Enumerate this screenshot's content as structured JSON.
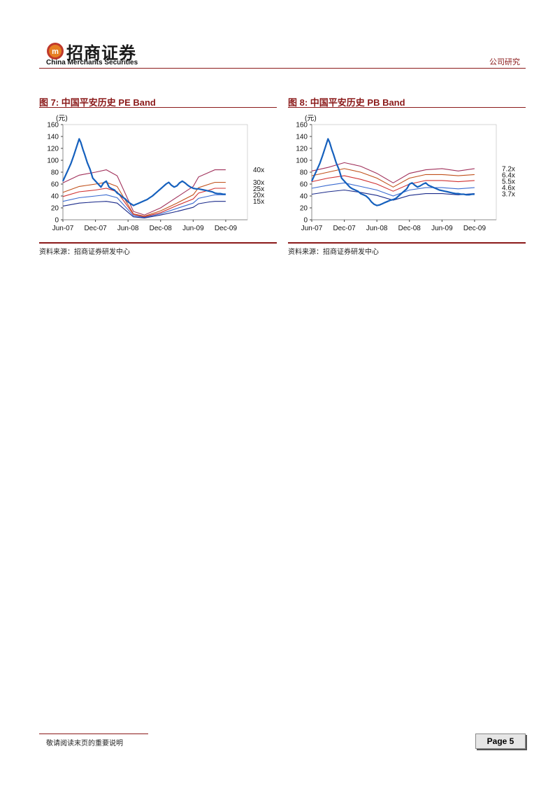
{
  "header": {
    "brand_cn": "招商证券",
    "brand_en": "China Merchants Securities",
    "report_type": "公司研究"
  },
  "figures": [
    {
      "id": "fig7",
      "title": "图 7:  中国平安历史 PE Band",
      "source": "资料来源：招商证券研发中心"
    },
    {
      "id": "fig8",
      "title": "图 8:  中国平安历史 PB Band",
      "source": "资料来源：招商证券研发中心"
    }
  ],
  "footer": {
    "note": "敬请阅读末页的重要说明",
    "page_label": "Page 5"
  },
  "colors": {
    "brand": "#8b1a1a",
    "price_line": "#1560bd"
  },
  "chart_data": [
    {
      "type": "line",
      "title": "图 7:  中国平安历史 PE Band",
      "unit_label": "(元)",
      "ylim": [
        0,
        160
      ],
      "yticks": [
        0,
        20,
        40,
        60,
        80,
        100,
        120,
        140,
        160
      ],
      "xticks": [
        "Jun-07",
        "Dec-07",
        "Jun-08",
        "Dec-08",
        "Jun-09",
        "Dec-09"
      ],
      "xlim": [
        0,
        34
      ],
      "grid": false,
      "legend": "right-end labels",
      "price": {
        "color": "#1560bd",
        "points": [
          [
            0,
            65
          ],
          [
            0.5,
            75
          ],
          [
            1,
            85
          ],
          [
            1.5,
            95
          ],
          [
            2,
            108
          ],
          [
            2.5,
            122
          ],
          [
            3,
            136
          ],
          [
            3.3,
            130
          ],
          [
            3.7,
            118
          ],
          [
            4,
            110
          ],
          [
            4.5,
            96
          ],
          [
            5,
            85
          ],
          [
            5.5,
            70
          ],
          [
            6,
            65
          ],
          [
            6.5,
            60
          ],
          [
            7,
            55
          ],
          [
            7.5,
            62
          ],
          [
            8,
            65
          ],
          [
            8.5,
            55
          ],
          [
            9,
            52
          ],
          [
            9.5,
            50
          ],
          [
            10,
            45
          ],
          [
            10.5,
            42
          ],
          [
            11,
            38
          ],
          [
            11.5,
            35
          ],
          [
            12,
            30
          ],
          [
            12.5,
            27
          ],
          [
            13,
            24
          ],
          [
            13.5,
            26
          ],
          [
            14,
            28
          ],
          [
            14.5,
            30
          ],
          [
            15,
            32
          ],
          [
            15.5,
            34
          ],
          [
            16,
            37
          ],
          [
            16.5,
            40
          ],
          [
            17,
            44
          ],
          [
            17.5,
            48
          ],
          [
            18,
            52
          ],
          [
            18.5,
            56
          ],
          [
            19,
            60
          ],
          [
            19.5,
            63
          ],
          [
            20,
            58
          ],
          [
            20.5,
            55
          ],
          [
            21,
            57
          ],
          [
            21.5,
            62
          ],
          [
            22,
            65
          ],
          [
            22.5,
            62
          ],
          [
            23,
            58
          ],
          [
            23.5,
            55
          ],
          [
            24,
            53
          ],
          [
            24.5,
            52
          ],
          [
            25,
            52
          ],
          [
            25.5,
            51
          ],
          [
            26,
            50
          ],
          [
            26.5,
            49
          ],
          [
            27,
            48
          ],
          [
            27.5,
            47
          ],
          [
            28,
            45
          ],
          [
            28.5,
            44
          ],
          [
            29,
            44
          ],
          [
            29.5,
            43
          ],
          [
            30,
            43
          ]
        ]
      },
      "series": [
        {
          "name": "40x",
          "color": "#a0305a",
          "values": [
            [
              0,
              62
            ],
            [
              3,
              75
            ],
            [
              6,
              80
            ],
            [
              8,
              84
            ],
            [
              10,
              74
            ],
            [
              13,
              14
            ],
            [
              15,
              8
            ],
            [
              18,
              20
            ],
            [
              21,
              38
            ],
            [
              24,
              56
            ],
            [
              25,
              72
            ],
            [
              27,
              80
            ],
            [
              28,
              84
            ],
            [
              30,
              84
            ]
          ]
        },
        {
          "name": "30x",
          "color": "#c0501a",
          "values": [
            [
              0,
              46
            ],
            [
              3,
              56
            ],
            [
              6,
              60
            ],
            [
              8,
              63
            ],
            [
              10,
              56
            ],
            [
              13,
              10
            ],
            [
              15,
              6
            ],
            [
              18,
              15
            ],
            [
              21,
              28
            ],
            [
              24,
              42
            ],
            [
              25,
              54
            ],
            [
              27,
              60
            ],
            [
              28,
              63
            ],
            [
              30,
              63
            ]
          ]
        },
        {
          "name": "25x",
          "color": "#d03030",
          "values": [
            [
              0,
              39
            ],
            [
              3,
              47
            ],
            [
              6,
              50
            ],
            [
              8,
              53
            ],
            [
              10,
              47
            ],
            [
              13,
              9
            ],
            [
              15,
              5
            ],
            [
              18,
              12
            ],
            [
              21,
              24
            ],
            [
              24,
              35
            ],
            [
              25,
              45
            ],
            [
              27,
              50
            ],
            [
              28,
              53
            ],
            [
              30,
              53
            ]
          ]
        },
        {
          "name": "20x",
          "color": "#3a6ad0",
          "values": [
            [
              0,
              31
            ],
            [
              3,
              37
            ],
            [
              6,
              40
            ],
            [
              8,
              42
            ],
            [
              10,
              37
            ],
            [
              13,
              7
            ],
            [
              15,
              4
            ],
            [
              18,
              10
            ],
            [
              21,
              19
            ],
            [
              24,
              28
            ],
            [
              25,
              36
            ],
            [
              27,
              40
            ],
            [
              28,
              42
            ],
            [
              30,
              42
            ]
          ]
        },
        {
          "name": "15x",
          "color": "#1a2a8a",
          "values": [
            [
              0,
              23
            ],
            [
              3,
              28
            ],
            [
              6,
              30
            ],
            [
              8,
              31
            ],
            [
              10,
              28
            ],
            [
              13,
              5
            ],
            [
              15,
              3
            ],
            [
              18,
              8
            ],
            [
              21,
              14
            ],
            [
              24,
              21
            ],
            [
              25,
              27
            ],
            [
              27,
              30
            ],
            [
              28,
              31
            ],
            [
              30,
              31
            ]
          ]
        }
      ]
    },
    {
      "type": "line",
      "title": "图 8:  中国平安历史 PB Band",
      "unit_label": "(元)",
      "ylim": [
        0,
        160
      ],
      "yticks": [
        0,
        20,
        40,
        60,
        80,
        100,
        120,
        140,
        160
      ],
      "xticks": [
        "Jun-07",
        "Dec-07",
        "Jun-08",
        "Dec-08",
        "Jun-09",
        "Dec-09"
      ],
      "xlim": [
        0,
        34
      ],
      "grid": false,
      "legend": "right-end labels",
      "price": {
        "color": "#1560bd",
        "points": [
          [
            0,
            65
          ],
          [
            0.5,
            75
          ],
          [
            1,
            85
          ],
          [
            1.5,
            95
          ],
          [
            2,
            108
          ],
          [
            2.5,
            122
          ],
          [
            3,
            136
          ],
          [
            3.3,
            130
          ],
          [
            3.7,
            118
          ],
          [
            4,
            110
          ],
          [
            4.5,
            96
          ],
          [
            5,
            85
          ],
          [
            5.5,
            70
          ],
          [
            6,
            65
          ],
          [
            6.5,
            60
          ],
          [
            7,
            55
          ],
          [
            7.5,
            52
          ],
          [
            8,
            50
          ],
          [
            8.5,
            48
          ],
          [
            9,
            44
          ],
          [
            9.5,
            42
          ],
          [
            10,
            40
          ],
          [
            10.5,
            36
          ],
          [
            11,
            30
          ],
          [
            11.5,
            26
          ],
          [
            12,
            24
          ],
          [
            12.5,
            25
          ],
          [
            13,
            27
          ],
          [
            13.5,
            29
          ],
          [
            14,
            31
          ],
          [
            14.5,
            33
          ],
          [
            15,
            34
          ],
          [
            15.5,
            36
          ],
          [
            16,
            40
          ],
          [
            16.5,
            44
          ],
          [
            17,
            48
          ],
          [
            17.5,
            52
          ],
          [
            18,
            60
          ],
          [
            18.5,
            62
          ],
          [
            19,
            58
          ],
          [
            19.5,
            55
          ],
          [
            20,
            57
          ],
          [
            20.5,
            60
          ],
          [
            21,
            62
          ],
          [
            21.5,
            58
          ],
          [
            22,
            56
          ],
          [
            22.5,
            54
          ],
          [
            23,
            52
          ],
          [
            23.5,
            50
          ],
          [
            24,
            49
          ],
          [
            24.5,
            48
          ],
          [
            25,
            47
          ],
          [
            25.5,
            46
          ],
          [
            26,
            45
          ],
          [
            26.5,
            44
          ],
          [
            27,
            44
          ],
          [
            27.5,
            43
          ],
          [
            28,
            43
          ],
          [
            28.5,
            42
          ],
          [
            29,
            42
          ],
          [
            29.5,
            43
          ],
          [
            30,
            43
          ]
        ]
      },
      "series": [
        {
          "name": "7.2x",
          "color": "#a0305a",
          "values": [
            [
              0,
              82
            ],
            [
              3,
              88
            ],
            [
              6,
              96
            ],
            [
              9,
              90
            ],
            [
              12,
              78
            ],
            [
              15,
              62
            ],
            [
              18,
              78
            ],
            [
              21,
              84
            ],
            [
              24,
              86
            ],
            [
              27,
              82
            ],
            [
              30,
              86
            ]
          ]
        },
        {
          "name": "6.4x",
          "color": "#c0501a",
          "values": [
            [
              0,
              74
            ],
            [
              3,
              80
            ],
            [
              6,
              86
            ],
            [
              9,
              80
            ],
            [
              12,
              70
            ],
            [
              15,
              55
            ],
            [
              18,
              70
            ],
            [
              21,
              76
            ],
            [
              24,
              76
            ],
            [
              27,
              74
            ],
            [
              30,
              76
            ]
          ]
        },
        {
          "name": "5.5x",
          "color": "#d03030",
          "values": [
            [
              0,
              64
            ],
            [
              3,
              70
            ],
            [
              6,
              74
            ],
            [
              9,
              68
            ],
            [
              12,
              60
            ],
            [
              15,
              48
            ],
            [
              18,
              60
            ],
            [
              21,
              66
            ],
            [
              24,
              66
            ],
            [
              27,
              64
            ],
            [
              30,
              66
            ]
          ]
        },
        {
          "name": "4.6x",
          "color": "#3a6ad0",
          "values": [
            [
              0,
              53
            ],
            [
              3,
              58
            ],
            [
              6,
              62
            ],
            [
              9,
              56
            ],
            [
              12,
              50
            ],
            [
              15,
              40
            ],
            [
              18,
              50
            ],
            [
              21,
              54
            ],
            [
              24,
              54
            ],
            [
              27,
              52
            ],
            [
              30,
              54
            ]
          ]
        },
        {
          "name": "3.7x",
          "color": "#1a2a8a",
          "values": [
            [
              0,
              43
            ],
            [
              3,
              47
            ],
            [
              6,
              50
            ],
            [
              9,
              46
            ],
            [
              12,
              41
            ],
            [
              15,
              33
            ],
            [
              18,
              41
            ],
            [
              21,
              44
            ],
            [
              24,
              44
            ],
            [
              27,
              42
            ],
            [
              30,
              44
            ]
          ]
        }
      ]
    }
  ]
}
